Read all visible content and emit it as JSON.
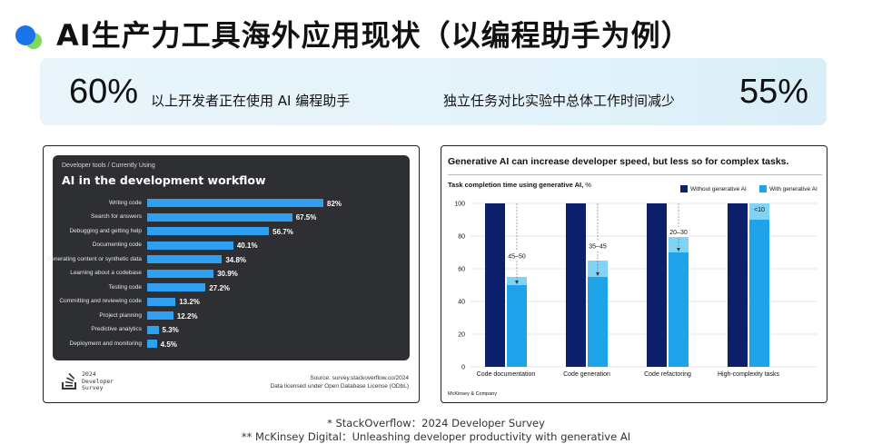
{
  "slide": {
    "title": "AI生产力工具海外应用现状（以编程助手为例）",
    "stat_left_value": "60%",
    "stat_left_text": "以上开发者正在使用 AI 编程助手",
    "stat_right_text": "独立任务对比实验中总体工作时间减少",
    "stat_right_value": "55%",
    "footnote_1": "* StackOverflow：2024 Developer Survey",
    "footnote_2": "** McKinsey Digital：Unleashing developer productivity with generative AI",
    "accent_blue": "#1a73e8",
    "accent_green": "#7ed957"
  },
  "stackoverflow": {
    "breadcrumb": "Developer tools / Currently Using",
    "title": "AI in the development workflow",
    "logo_text_line1": "2024",
    "logo_text_line2": "Developer",
    "logo_text_line3": "Survey",
    "source_line1": "Source: survey.stackoverflow.co/2024",
    "source_line2": "Data licensed under Open Database License (ODbL)",
    "bar_color": "#2ea0ef",
    "bg_color": "#2d2f33"
  },
  "mckinsey": {
    "title": "Generative AI can increase developer speed, but less so for complex tasks.",
    "subtitle_bold": "Task completion time using generative AI,",
    "subtitle_unit": " %",
    "legend_without": "Without generative AI",
    "legend_with": "With generative AI",
    "brand": "McKinsey & Company",
    "color_without": "#0b1f6b",
    "color_with": "#1fa3e8",
    "color_with_light": "#7fd3f5"
  },
  "chart_data": [
    {
      "type": "bar",
      "title": "AI in the development workflow",
      "categories": [
        "Writing code",
        "Search for answers",
        "Debugging and getting help",
        "Documenting code",
        "Generating content or synthetic data",
        "Learning about a codebase",
        "Testing code",
        "Committing and reviewing code",
        "Project planning",
        "Predictive analytics",
        "Deployment and monitoring"
      ],
      "values": [
        82,
        67.5,
        56.7,
        40.1,
        34.8,
        30.9,
        27.2,
        13.2,
        12.2,
        5.3,
        4.5
      ],
      "value_labels": [
        "82%",
        "67.5%",
        "56.7%",
        "40.1%",
        "34.8%",
        "30.9%",
        "27.2%",
        "13.2%",
        "12.2%",
        "5.3%",
        "4.5%"
      ],
      "orientation": "horizontal",
      "xlim": [
        0,
        100
      ]
    },
    {
      "type": "bar",
      "title": "Task completion time using generative AI, %",
      "categories": [
        "Code documentation",
        "Code generation",
        "Code refactoring",
        "High-complexity tasks"
      ],
      "series": [
        {
          "name": "Without generative AI",
          "values": [
            100,
            100,
            100,
            100
          ]
        },
        {
          "name": "With generative AI",
          "values": [
            50,
            55,
            70,
            90
          ],
          "range_top": [
            55,
            65,
            80,
            100
          ]
        }
      ],
      "annotations": [
        "45–50",
        "35–45",
        "20–30",
        "<10"
      ],
      "yticks": [
        "0",
        "20",
        "40",
        "60",
        "80",
        "100"
      ],
      "ylim": [
        0,
        100
      ],
      "grid": true,
      "legend": "top-right"
    }
  ]
}
